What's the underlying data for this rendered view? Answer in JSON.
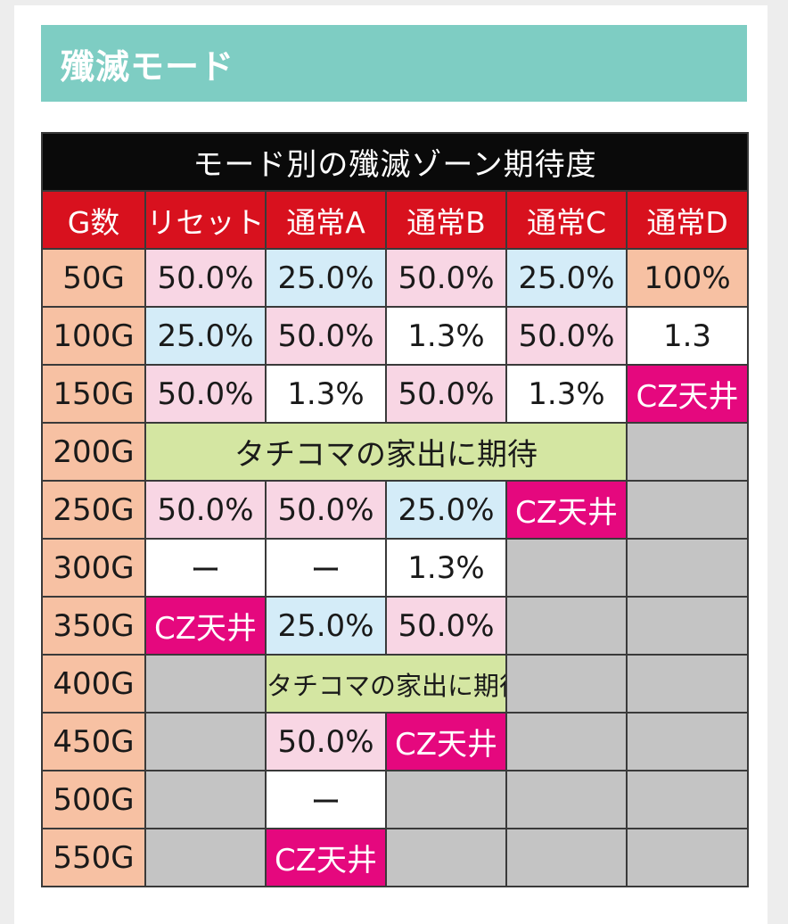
{
  "section_title": "殲滅モード",
  "table": {
    "caption": "モード別の殲滅ゾーン期待度",
    "headers": [
      "G数",
      "リセット",
      "通常A",
      "通常B",
      "通常C",
      "通常D"
    ],
    "rows": [
      {
        "g": "50G",
        "cells": [
          {
            "text": "50.0%",
            "bg": "pink"
          },
          {
            "text": "25.0%",
            "bg": "blue"
          },
          {
            "text": "50.0%",
            "bg": "pink"
          },
          {
            "text": "25.0%",
            "bg": "blue"
          },
          {
            "text": "100%",
            "bg": "peach"
          }
        ]
      },
      {
        "g": "100G",
        "cells": [
          {
            "text": "25.0%",
            "bg": "blue"
          },
          {
            "text": "50.0%",
            "bg": "pink"
          },
          {
            "text": "1.3%",
            "bg": "white"
          },
          {
            "text": "50.0%",
            "bg": "pink"
          },
          {
            "text": "1.3",
            "bg": "white"
          }
        ]
      },
      {
        "g": "150G",
        "cells": [
          {
            "text": "50.0%",
            "bg": "pink"
          },
          {
            "text": "1.3%",
            "bg": "white"
          },
          {
            "text": "50.0%",
            "bg": "pink"
          },
          {
            "text": "1.3%",
            "bg": "white"
          },
          {
            "text": "CZ天井",
            "bg": "cz"
          }
        ]
      },
      {
        "g": "200G",
        "cells": [
          {
            "text": "タチコマの家出に期待",
            "bg": "green",
            "span": 4
          },
          {
            "text": "",
            "bg": "gray"
          }
        ]
      },
      {
        "g": "250G",
        "cells": [
          {
            "text": "50.0%",
            "bg": "pink"
          },
          {
            "text": "50.0%",
            "bg": "pink"
          },
          {
            "text": "25.0%",
            "bg": "blue"
          },
          {
            "text": "CZ天井",
            "bg": "cz"
          },
          {
            "text": "",
            "bg": "gray"
          }
        ]
      },
      {
        "g": "300G",
        "cells": [
          {
            "text": "ー",
            "bg": "white"
          },
          {
            "text": "ー",
            "bg": "white"
          },
          {
            "text": "1.3%",
            "bg": "white"
          },
          {
            "text": "",
            "bg": "gray"
          },
          {
            "text": "",
            "bg": "gray"
          }
        ]
      },
      {
        "g": "350G",
        "cells": [
          {
            "text": "CZ天井",
            "bg": "cz"
          },
          {
            "text": "25.0%",
            "bg": "blue"
          },
          {
            "text": "50.0%",
            "bg": "pink"
          },
          {
            "text": "",
            "bg": "gray"
          },
          {
            "text": "",
            "bg": "gray"
          }
        ]
      },
      {
        "g": "400G",
        "cells": [
          {
            "text": "",
            "bg": "gray"
          },
          {
            "text": "タチコマの家出に期待",
            "bg": "green",
            "span": 2,
            "small": true
          },
          {
            "text": "",
            "bg": "gray"
          },
          {
            "text": "",
            "bg": "gray"
          }
        ]
      },
      {
        "g": "450G",
        "cells": [
          {
            "text": "",
            "bg": "gray"
          },
          {
            "text": "50.0%",
            "bg": "pink"
          },
          {
            "text": "CZ天井",
            "bg": "cz"
          },
          {
            "text": "",
            "bg": "gray"
          },
          {
            "text": "",
            "bg": "gray"
          }
        ]
      },
      {
        "g": "500G",
        "cells": [
          {
            "text": "",
            "bg": "gray"
          },
          {
            "text": "ー",
            "bg": "white"
          },
          {
            "text": "",
            "bg": "gray"
          },
          {
            "text": "",
            "bg": "gray"
          },
          {
            "text": "",
            "bg": "gray"
          }
        ]
      },
      {
        "g": "550G",
        "cells": [
          {
            "text": "",
            "bg": "gray"
          },
          {
            "text": "CZ天井",
            "bg": "cz"
          },
          {
            "text": "",
            "bg": "gray"
          },
          {
            "text": "",
            "bg": "gray"
          },
          {
            "text": "",
            "bg": "gray"
          }
        ]
      }
    ]
  }
}
